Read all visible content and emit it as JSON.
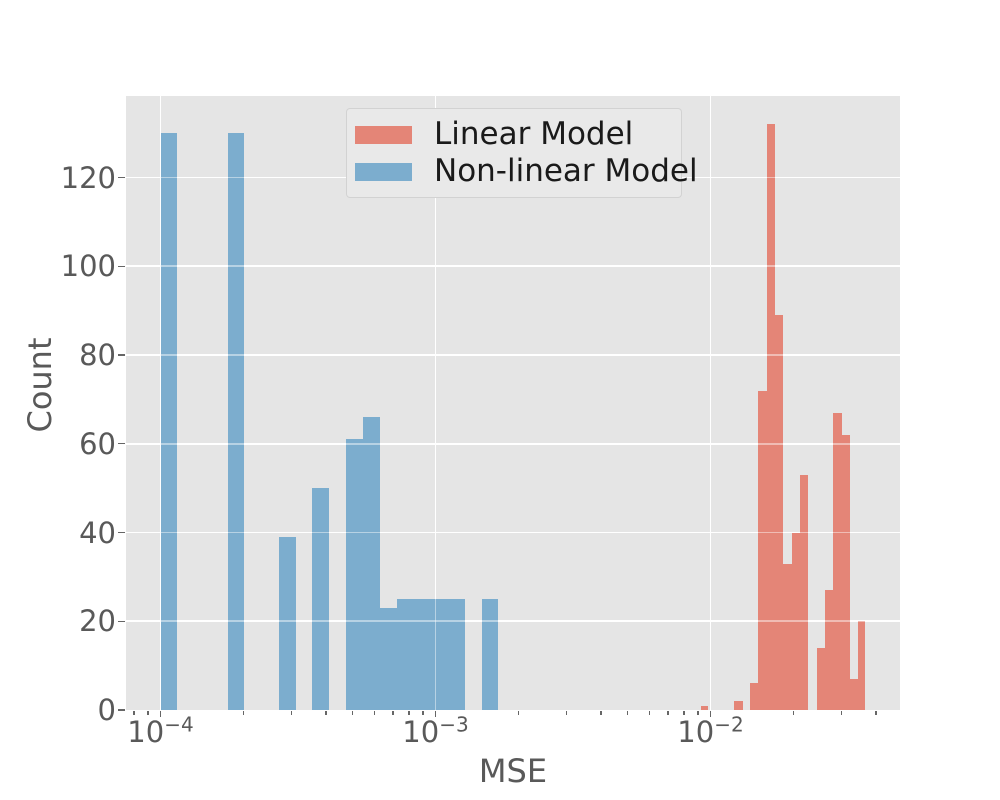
{
  "chart_data": {
    "type": "bar",
    "subtype": "histogram",
    "title": "",
    "xlabel": "MSE",
    "ylabel": "Count",
    "x_scale": "log10",
    "xlim": [
      7.5e-05,
      0.049
    ],
    "ylim": [
      0,
      138
    ],
    "grid": true,
    "plot_background": "#e5e5e5",
    "legend_position": "upper left-center",
    "x_major_ticks": [
      {
        "value": 0.0001,
        "base": "10",
        "exp": "−4"
      },
      {
        "value": 0.001,
        "base": "10",
        "exp": "−3"
      },
      {
        "value": 0.01,
        "base": "10",
        "exp": "−2"
      }
    ],
    "x_minor_ticks": [
      8e-05,
      9e-05,
      0.0002,
      0.0003,
      0.0004,
      0.0005,
      0.0006,
      0.0007,
      0.0008,
      0.0009,
      0.002,
      0.003,
      0.004,
      0.005,
      0.006,
      0.007,
      0.008,
      0.009,
      0.02,
      0.03,
      0.04
    ],
    "y_ticks": [
      0,
      20,
      40,
      60,
      80,
      100,
      120
    ],
    "series": [
      {
        "name": "Linear Model",
        "color": "#e48577",
        "bins": [
          {
            "x0": 0.0092,
            "x1": 0.00981,
            "count": 1
          },
          {
            "x0": 0.01222,
            "x1": 0.01309,
            "count": 2
          },
          {
            "x0": 0.01392,
            "x1": 0.01492,
            "count": 6
          },
          {
            "x0": 0.01492,
            "x1": 0.01603,
            "count": 72
          },
          {
            "x0": 0.01603,
            "x1": 0.01718,
            "count": 132
          },
          {
            "x0": 0.01718,
            "x1": 0.01841,
            "count": 89
          },
          {
            "x0": 0.01841,
            "x1": 0.01974,
            "count": 33
          },
          {
            "x0": 0.01974,
            "x1": 0.02116,
            "count": 40
          },
          {
            "x0": 0.02116,
            "x1": 0.02268,
            "count": 53
          },
          {
            "x0": 0.02434,
            "x1": 0.0261,
            "count": 14
          },
          {
            "x0": 0.0261,
            "x1": 0.02796,
            "count": 27
          },
          {
            "x0": 0.02796,
            "x1": 0.02999,
            "count": 67
          },
          {
            "x0": 0.02999,
            "x1": 0.03216,
            "count": 62
          },
          {
            "x0": 0.03216,
            "x1": 0.0343,
            "count": 7
          },
          {
            "x0": 0.0343,
            "x1": 0.0365,
            "count": 20
          }
        ]
      },
      {
        "name": "Non-linear Model",
        "color": "#7cadce",
        "bins": [
          {
            "x0": 0.0001,
            "x1": 0.000115,
            "count": 130
          },
          {
            "x0": 0.000176,
            "x1": 0.000202,
            "count": 130
          },
          {
            "x0": 0.000269,
            "x1": 0.00031,
            "count": 39
          },
          {
            "x0": 0.000357,
            "x1": 0.00041,
            "count": 50
          },
          {
            "x0": 0.000474,
            "x1": 0.000546,
            "count": 61
          },
          {
            "x0": 0.000546,
            "x1": 0.000628,
            "count": 66
          },
          {
            "x0": 0.000628,
            "x1": 0.000723,
            "count": 23
          },
          {
            "x0": 0.000723,
            "x1": 0.001278,
            "count": 25
          },
          {
            "x0": 0.00147,
            "x1": 0.001692,
            "count": 25
          }
        ]
      }
    ]
  },
  "legend": {
    "entries": [
      {
        "label": "Linear Model",
        "color": "#e48577"
      },
      {
        "label": "Non-linear Model",
        "color": "#7cadce"
      }
    ]
  }
}
